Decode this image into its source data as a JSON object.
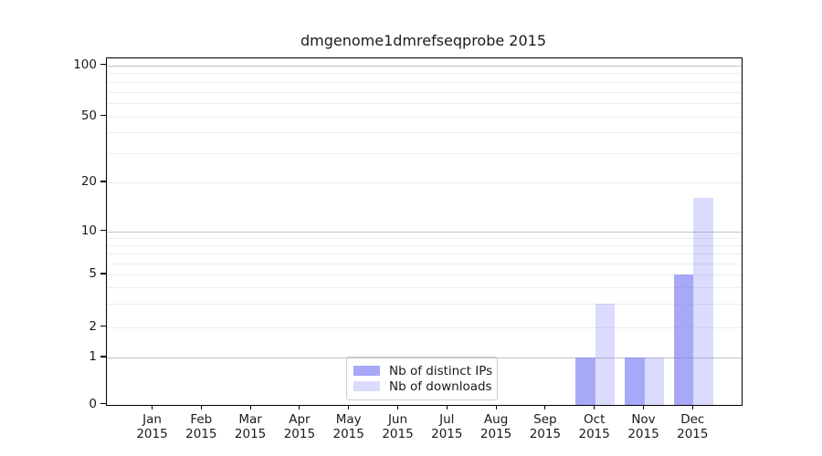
{
  "chart_data": {
    "type": "bar",
    "title": "dmgenome1dmrefseqprobe 2015",
    "x_axis": {
      "months": [
        "Jan",
        "Feb",
        "Mar",
        "Apr",
        "May",
        "Jun",
        "Jul",
        "Aug",
        "Sep",
        "Oct",
        "Nov",
        "Dec"
      ],
      "year": "2015"
    },
    "y_axis": {
      "scale": "log-like",
      "tick_labels": [
        "100",
        "50",
        "20",
        "10",
        "5",
        "2",
        "1",
        "0"
      ],
      "tick_values": [
        100,
        50,
        20,
        10,
        5,
        2,
        1,
        0
      ],
      "major_gridline_values": [
        1,
        10,
        100
      ],
      "minor_gridline_values": [
        2,
        3,
        4,
        5,
        6,
        7,
        8,
        9,
        20,
        30,
        40,
        50,
        60,
        70,
        80,
        90
      ],
      "range": [
        0,
        100
      ]
    },
    "series": [
      {
        "name": "Nb of distinct IPs",
        "color": "rgba(122,122,245,0.65)",
        "values": [
          0,
          0,
          0,
          0,
          0,
          0,
          0,
          0,
          0,
          1,
          1,
          5
        ]
      },
      {
        "name": "Nb of downloads",
        "color": "rgba(122,122,245,0.27)",
        "values": [
          0,
          0,
          0,
          0,
          0,
          0,
          0,
          0,
          0,
          3,
          1,
          16
        ]
      }
    ],
    "legend": {
      "position": "lower center",
      "entries": [
        "Nb of distinct IPs",
        "Nb of downloads"
      ]
    }
  },
  "colors": {
    "background": "#ffffff",
    "axis_spine": "#000000",
    "major_gridline": "#c3c3c3",
    "minor_gridline": "#ececec",
    "text": "#1a1a1a"
  }
}
